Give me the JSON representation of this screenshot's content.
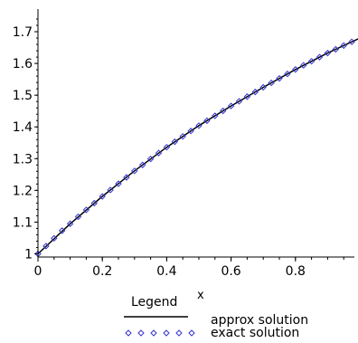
{
  "chart_data": {
    "type": "line",
    "title": "",
    "xlabel": "x",
    "ylabel": "",
    "xlim": [
      0,
      1.0
    ],
    "ylim": [
      0.99,
      1.76
    ],
    "x_ticks": [
      "0",
      "0.2",
      "0.4",
      "0.6",
      "0.8"
    ],
    "y_ticks": [
      "1",
      "1.1",
      "1.2",
      "1.3",
      "1.4",
      "1.5",
      "1.6",
      "1.7"
    ],
    "grid": false,
    "legend": {
      "title": "Legend",
      "placement": "bottom"
    },
    "series": [
      {
        "name": "approx solution",
        "style": "solid-line",
        "color": "#000000",
        "x": [
          0.0,
          0.1,
          0.2,
          0.3,
          0.4,
          0.5,
          0.6,
          0.7,
          0.8,
          0.9,
          1.0
        ],
        "y": [
          1.0,
          1.0948,
          1.181,
          1.2614,
          1.336,
          1.404,
          1.466,
          1.5248,
          1.581,
          1.6327,
          1.68
        ]
      },
      {
        "name": "exact solution",
        "style": "diamond-points",
        "color": "#3333cc",
        "x": [
          0.0,
          0.025,
          0.05,
          0.075,
          0.1,
          0.125,
          0.15,
          0.175,
          0.2,
          0.225,
          0.25,
          0.275,
          0.3,
          0.325,
          0.35,
          0.375,
          0.4,
          0.425,
          0.45,
          0.475,
          0.5,
          0.525,
          0.55,
          0.575,
          0.6,
          0.625,
          0.65,
          0.675,
          0.7,
          0.725,
          0.75,
          0.775,
          0.8,
          0.825,
          0.85,
          0.875,
          0.9,
          0.925,
          0.95,
          0.975
        ],
        "y": [
          1.0,
          1.0245,
          1.0489,
          1.0731,
          1.0948,
          1.1168,
          1.1385,
          1.1597,
          1.181,
          1.2012,
          1.221,
          1.241,
          1.2614,
          1.2802,
          1.299,
          1.3175,
          1.336,
          1.3532,
          1.3702,
          1.3872,
          1.404,
          1.4195,
          1.435,
          1.4505,
          1.466,
          1.4807,
          1.4955,
          1.5101,
          1.5248,
          1.5388,
          1.5528,
          1.5669,
          1.581,
          1.594,
          1.6069,
          1.6198,
          1.6327,
          1.6445,
          1.6563,
          1.6682
        ]
      }
    ]
  }
}
